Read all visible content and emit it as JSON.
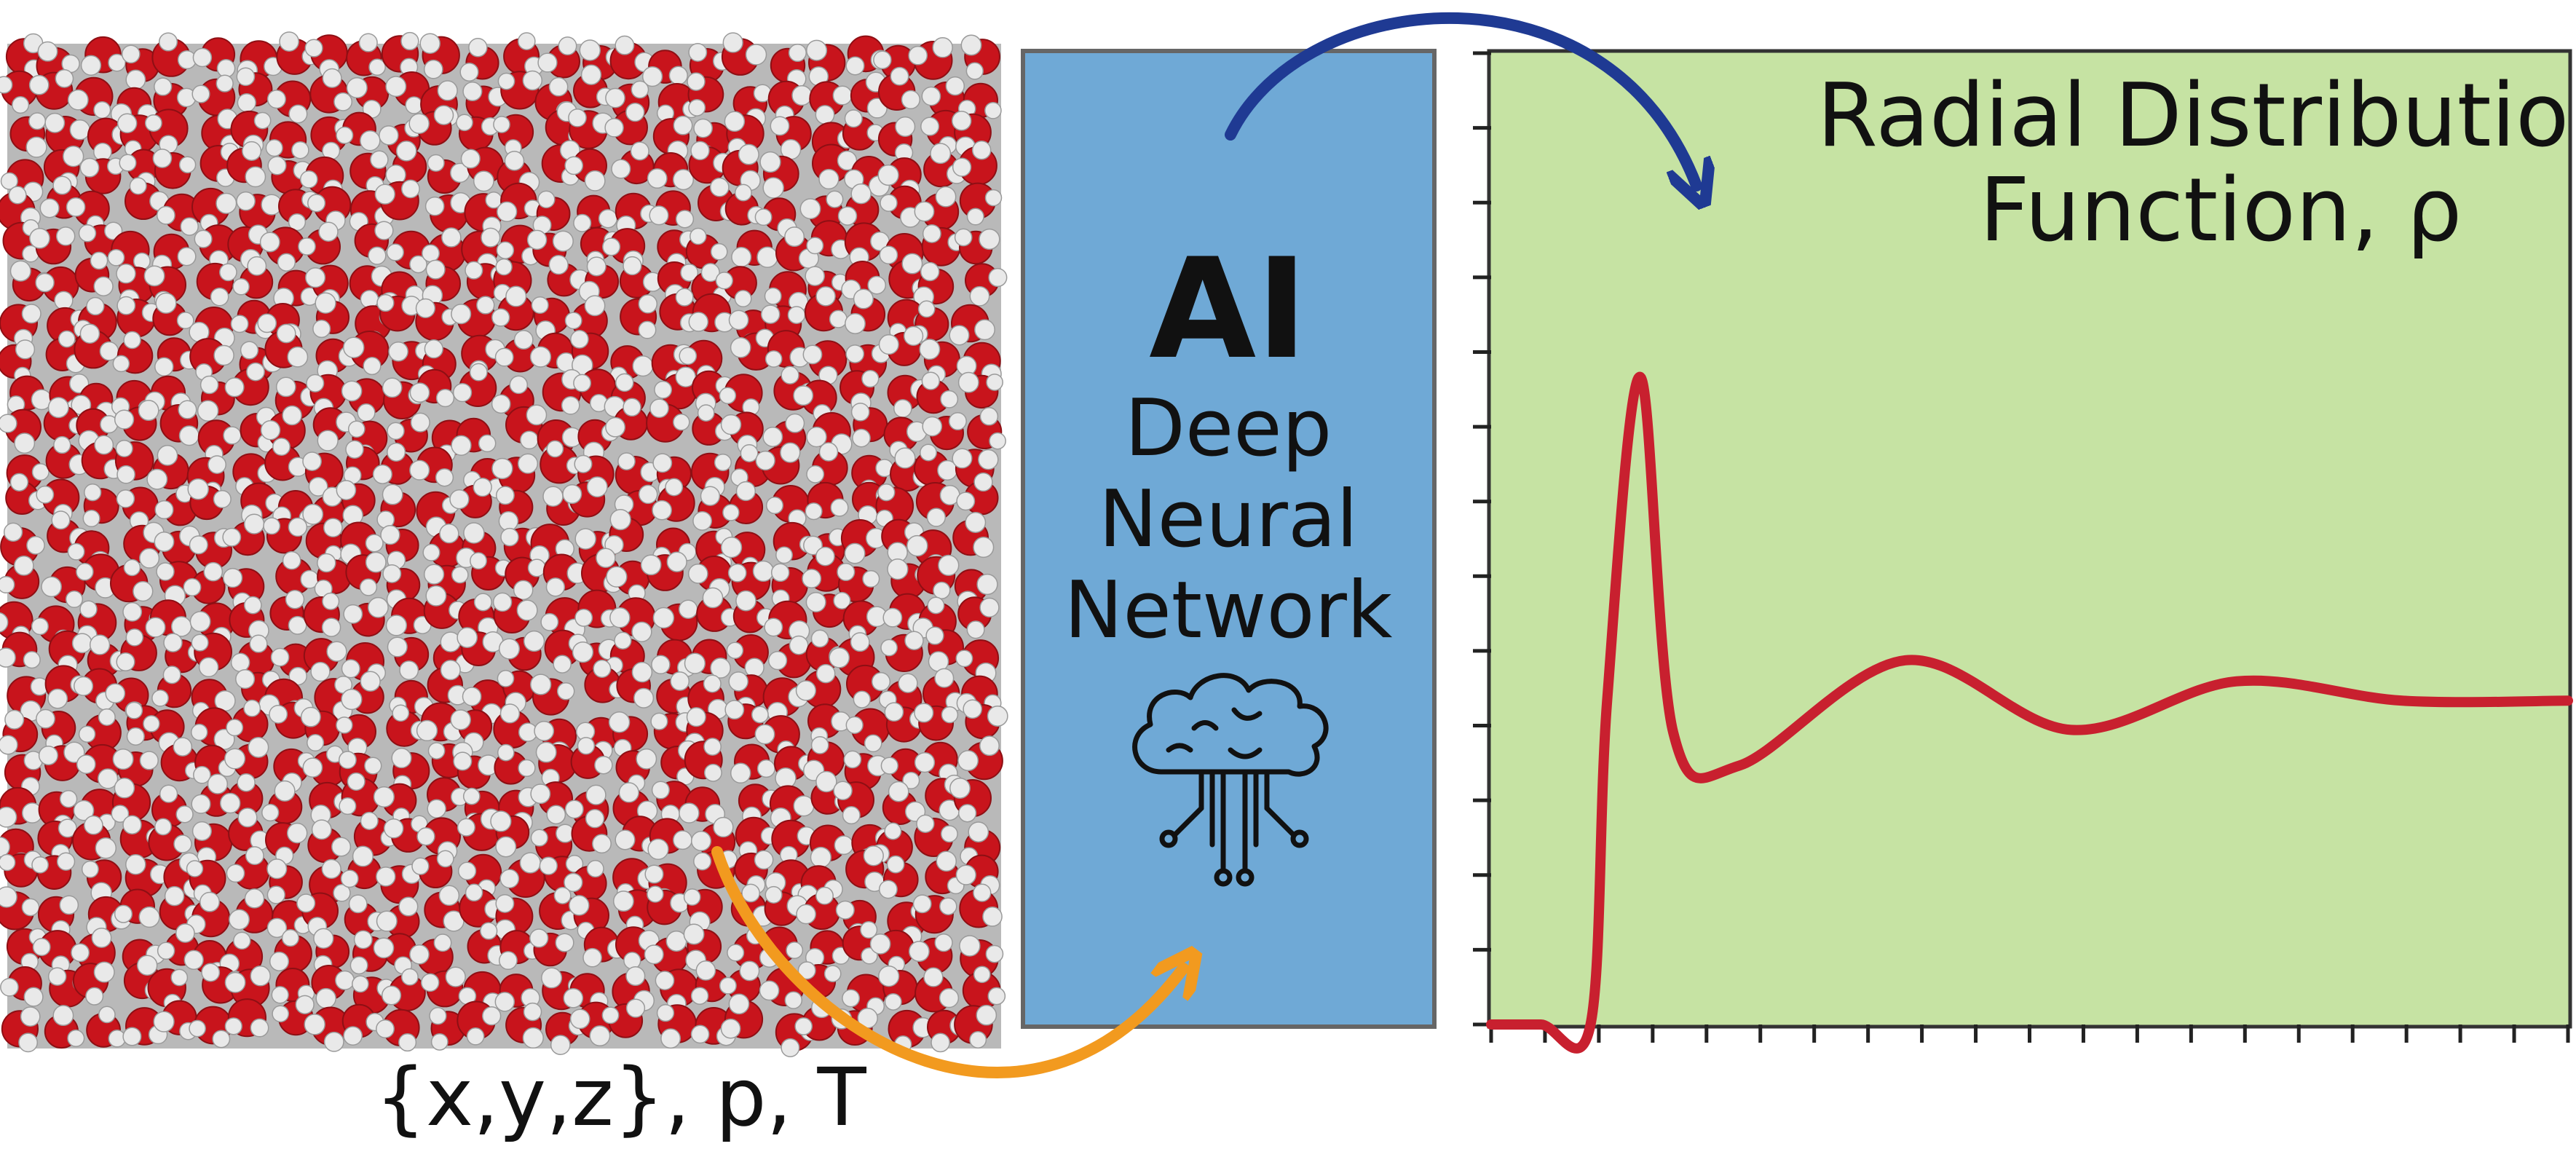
{
  "input_label": "{x,y,z}, p, T",
  "ai_box": {
    "title": "AI",
    "line1": "Deep",
    "line2": "Neural",
    "line3": "Network",
    "icon": "brain-cloud-circuit-icon"
  },
  "plot": {
    "title_line1": "Radial Distribution",
    "title_line2": "Function, ρ"
  },
  "colors": {
    "background_panel": "#c6e3a3",
    "ai_box": "#6fa9d6",
    "curve": "#c8202f",
    "arrow_orange": "#f29a1f",
    "arrow_blue": "#1f3a93",
    "oxygen": "#c8141c",
    "hydrogen": "#e9e9e9"
  },
  "chart_data": {
    "type": "line",
    "title": "Radial Distribution Function, ρ",
    "xlabel": "",
    "ylabel": "",
    "x": [
      0,
      0.3,
      0.6,
      0.7,
      0.9,
      1.1,
      1.5,
      2.5,
      3.5,
      4.5,
      5.5,
      6.5
    ],
    "series": [
      {
        "values": [
          0,
          0,
          0,
          2.0,
          4.0,
          1.8,
          1.6,
          2.25,
          1.82,
          2.12,
          2.0,
          2.0
        ]
      }
    ],
    "xlim": [
      0,
      6.5
    ],
    "ylim": [
      0,
      6
    ],
    "grid": false
  }
}
